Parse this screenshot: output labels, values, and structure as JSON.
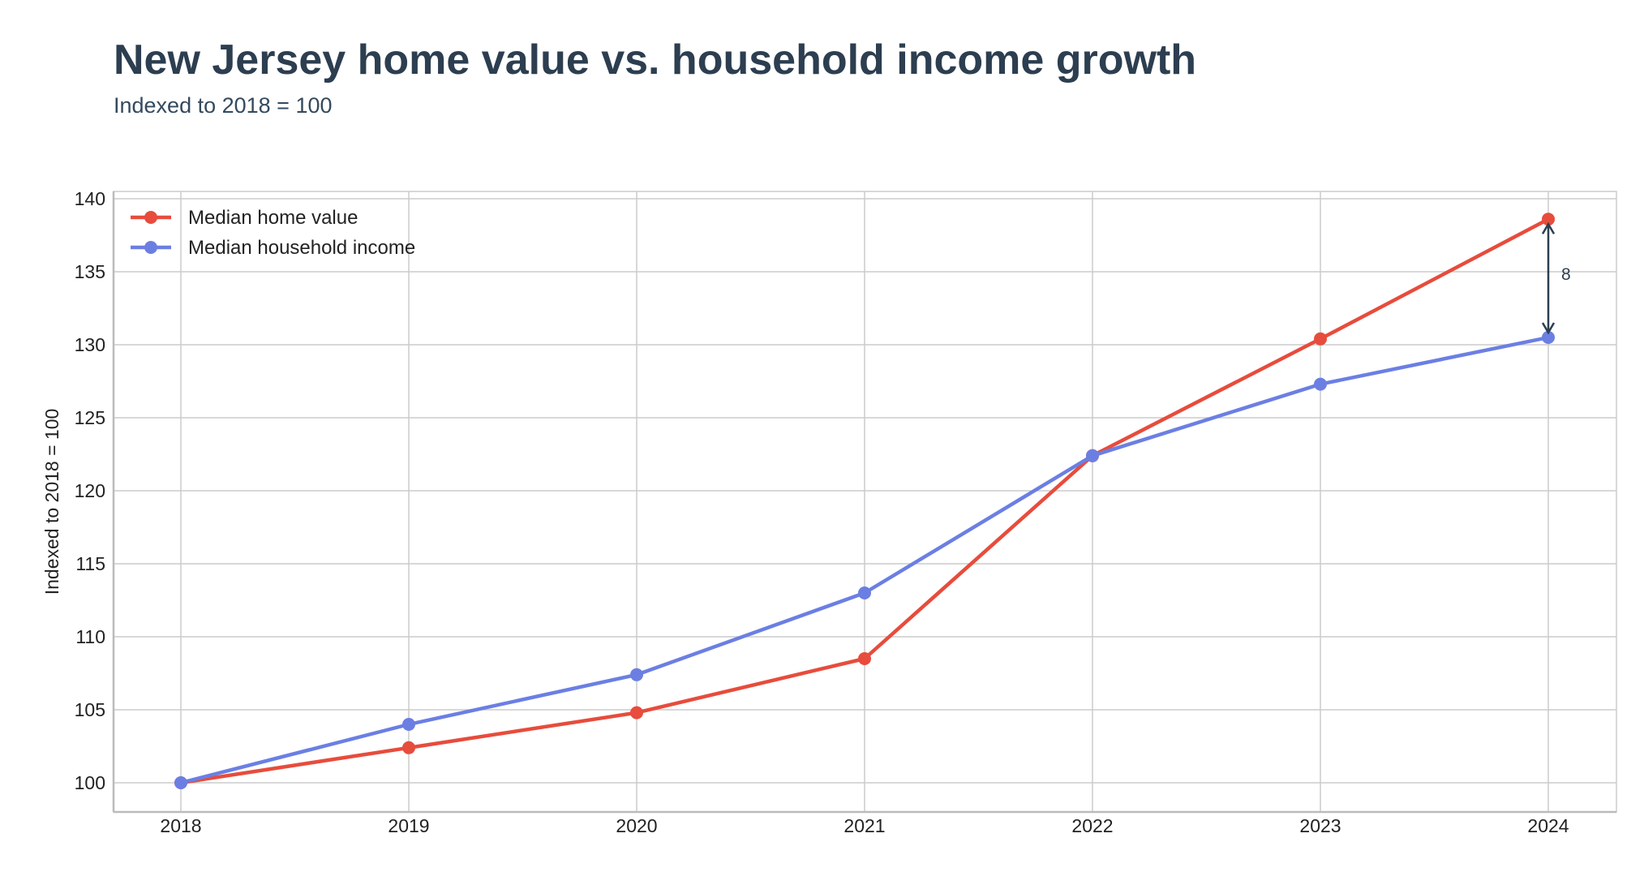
{
  "header": {
    "title": "New Jersey home value vs. household income growth",
    "subtitle": "Indexed to 2018 = 100"
  },
  "chart_data": {
    "type": "line",
    "title": "New Jersey home value vs. household income growth",
    "subtitle": "Indexed to 2018 = 100",
    "xlabel": "",
    "ylabel": "Indexed to 2018 = 100",
    "x": [
      "2018",
      "2019",
      "2020",
      "2021",
      "2022",
      "2023",
      "2024"
    ],
    "ylim": [
      98,
      140.5
    ],
    "yticks": [
      100,
      105,
      110,
      115,
      120,
      125,
      130,
      135,
      140
    ],
    "grid": true,
    "legend_position": "top-left",
    "series": [
      {
        "name": "Median home value",
        "color": "#e74c3c",
        "values": [
          100,
          102.4,
          104.8,
          108.5,
          122.4,
          130.4,
          138.6
        ]
      },
      {
        "name": "Median household income",
        "color": "#6b7fe3",
        "values": [
          100,
          104.0,
          107.4,
          113.0,
          122.4,
          127.3,
          130.5
        ]
      }
    ],
    "annotations": [
      {
        "type": "gap-arrow",
        "x": "2024",
        "from": 130.5,
        "to": 138.6,
        "label": "8"
      }
    ]
  }
}
